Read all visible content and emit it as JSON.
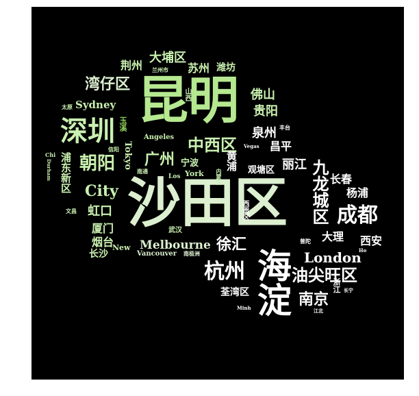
{
  "colors": {
    "background": "#000000",
    "frame": "#ffffff",
    "palette": [
      "#c9f0b0",
      "#a8e07a",
      "#8ccc5a",
      "#dcefd0",
      "#ffffff",
      "#b5e890"
    ]
  },
  "words": [
    "昆明",
    "沙田区",
    "海淀",
    "深圳",
    "九龙城区",
    "成都",
    "杭州",
    "中西区",
    "油尖旺区",
    "朝阳",
    "湾仔区",
    "大埔区",
    "广州",
    "London",
    "南京",
    "Melbourne",
    "City",
    "徐汇",
    "荆州",
    "苏州",
    "潍坊",
    "佛山",
    "贵阳",
    "泉州",
    "昌平",
    "丽江",
    "长春",
    "杨浦",
    "大理",
    "西安",
    "虹口",
    "厦门",
    "烟台",
    "长沙",
    "Sydney",
    "Tokyo",
    "Angeles",
    "浦东新区",
    "宁波",
    "黄浦",
    "观塘区",
    "荃湾区",
    "Vancouver",
    "New",
    "York",
    "Los",
    "武汉",
    "西贡区",
    "兰州市",
    "太原",
    "玉溪",
    "信阳",
    "南通",
    "Chi",
    "Durham",
    "文昌",
    "Vegas",
    "丰台",
    "普陀",
    "Ho",
    "长宁",
    "江北",
    "浙江",
    "Minh",
    "南极洲",
    "内蒙古",
    "山西"
  ]
}
